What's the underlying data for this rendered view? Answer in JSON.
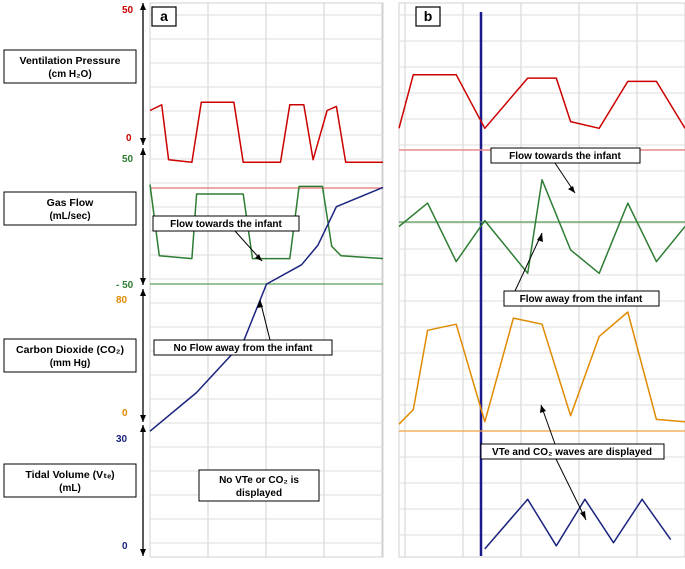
{
  "panels": {
    "a": {
      "label": "a"
    },
    "b": {
      "label": "b"
    }
  },
  "channels": [
    {
      "key": "pressure",
      "title": "Ventilation Pressure",
      "unit": "(cm H₂O)",
      "ymax_label": "50",
      "ymin_label": "0",
      "color": "#cc0000",
      "ref_color": "#e88a8a"
    },
    {
      "key": "flow",
      "title": "Gas Flow",
      "unit": "(mL/sec)",
      "ymax_label": "50",
      "ymin_label": "- 50",
      "color": "#2e7d32",
      "ref_color": "#5a9e5a"
    },
    {
      "key": "co2",
      "title": "Carbon Dioxide (CO₂)",
      "unit": "(mm Hg)",
      "ymax_label": "80",
      "ymin_label": "0",
      "color": "#e08a00",
      "ref_color": "#f0a040"
    },
    {
      "key": "vte",
      "title": "Tidal Volume (Vₜₑ)",
      "unit": "(mL)",
      "ymax_label": "30",
      "ymin_label": "0",
      "color": "#1a237e",
      "ref_color": "#1a237e"
    }
  ],
  "annotations": {
    "a_flow_towards": "Flow towards the infant",
    "a_no_flow_away": "No Flow away from the infant",
    "a_no_vte": "No VTe or CO₂ is",
    "a_no_vte_2": "displayed",
    "b_flow_towards": "Flow towards the infant",
    "b_flow_away": "Flow away from the infant",
    "b_vte_co2": "VTe and CO₂ waves are displayed"
  },
  "chart_data": [
    {
      "panel": "a",
      "type": "line",
      "series": [
        {
          "key": "pressure",
          "values": [
            [
              0,
              0.75
            ],
            [
              0.05,
              0.82
            ],
            [
              0.08,
              0.15
            ],
            [
              0.18,
              0.12
            ],
            [
              0.22,
              0.85
            ],
            [
              0.36,
              0.85
            ],
            [
              0.4,
              0.12
            ],
            [
              0.56,
              0.12
            ],
            [
              0.6,
              0.82
            ],
            [
              0.66,
              0.82
            ],
            [
              0.7,
              0.15
            ],
            [
              0.76,
              0.75
            ],
            [
              0.8,
              0.8
            ],
            [
              0.84,
              0.12
            ],
            [
              1,
              0.12
            ]
          ]
        },
        {
          "key": "flow",
          "values": [
            [
              0,
              0.9
            ],
            [
              0.04,
              0.15
            ],
            [
              0.18,
              0.12
            ],
            [
              0.2,
              0.8
            ],
            [
              0.4,
              0.8
            ],
            [
              0.44,
              0.12
            ],
            [
              0.6,
              0.12
            ],
            [
              0.64,
              0.88
            ],
            [
              0.74,
              0.88
            ],
            [
              0.78,
              0.25
            ],
            [
              0.82,
              0.15
            ],
            [
              1,
              0.12
            ]
          ]
        },
        {
          "key": "vte",
          "values": [
            [
              0,
              0.32
            ],
            [
              0.2,
              0.42
            ],
            [
              0.4,
              0.55
            ],
            [
              0.5,
              0.7
            ],
            [
              0.65,
              0.75
            ],
            [
              0.72,
              0.8
            ],
            [
              0.8,
              0.9
            ],
            [
              1,
              0.95
            ]
          ]
        }
      ]
    },
    {
      "panel": "b",
      "type": "line",
      "series": [
        {
          "key": "pressure",
          "values": [
            [
              0,
              0.1
            ],
            [
              0.05,
              0.9
            ],
            [
              0.2,
              0.9
            ],
            [
              0.3,
              0.1
            ],
            [
              0.45,
              0.85
            ],
            [
              0.55,
              0.85
            ],
            [
              0.6,
              0.2
            ],
            [
              0.7,
              0.1
            ],
            [
              0.8,
              0.8
            ],
            [
              0.9,
              0.8
            ],
            [
              1,
              0.1
            ]
          ]
        },
        {
          "key": "flow",
          "values": [
            [
              0,
              0.5
            ],
            [
              0.1,
              0.7
            ],
            [
              0.2,
              0.2
            ],
            [
              0.3,
              0.55
            ],
            [
              0.45,
              0.1
            ],
            [
              0.5,
              0.9
            ],
            [
              0.6,
              0.3
            ],
            [
              0.7,
              0.1
            ],
            [
              0.8,
              0.7
            ],
            [
              0.9,
              0.2
            ],
            [
              1,
              0.5
            ]
          ]
        },
        {
          "key": "co2",
          "values": [
            [
              0,
              0.08
            ],
            [
              0.05,
              0.2
            ],
            [
              0.1,
              0.85
            ],
            [
              0.2,
              0.9
            ],
            [
              0.3,
              0.1
            ],
            [
              0.4,
              0.95
            ],
            [
              0.5,
              0.9
            ],
            [
              0.6,
              0.15
            ],
            [
              0.7,
              0.8
            ],
            [
              0.8,
              1.0
            ],
            [
              0.9,
              0.12
            ],
            [
              1,
              0.1
            ]
          ]
        },
        {
          "key": "vte",
          "values": [
            [
              0.3,
              0.05
            ],
            [
              0.45,
              0.85
            ],
            [
              0.55,
              0.1
            ],
            [
              0.65,
              0.85
            ],
            [
              0.75,
              0.15
            ],
            [
              0.85,
              0.85
            ],
            [
              0.95,
              0.2
            ]
          ]
        }
      ]
    }
  ]
}
